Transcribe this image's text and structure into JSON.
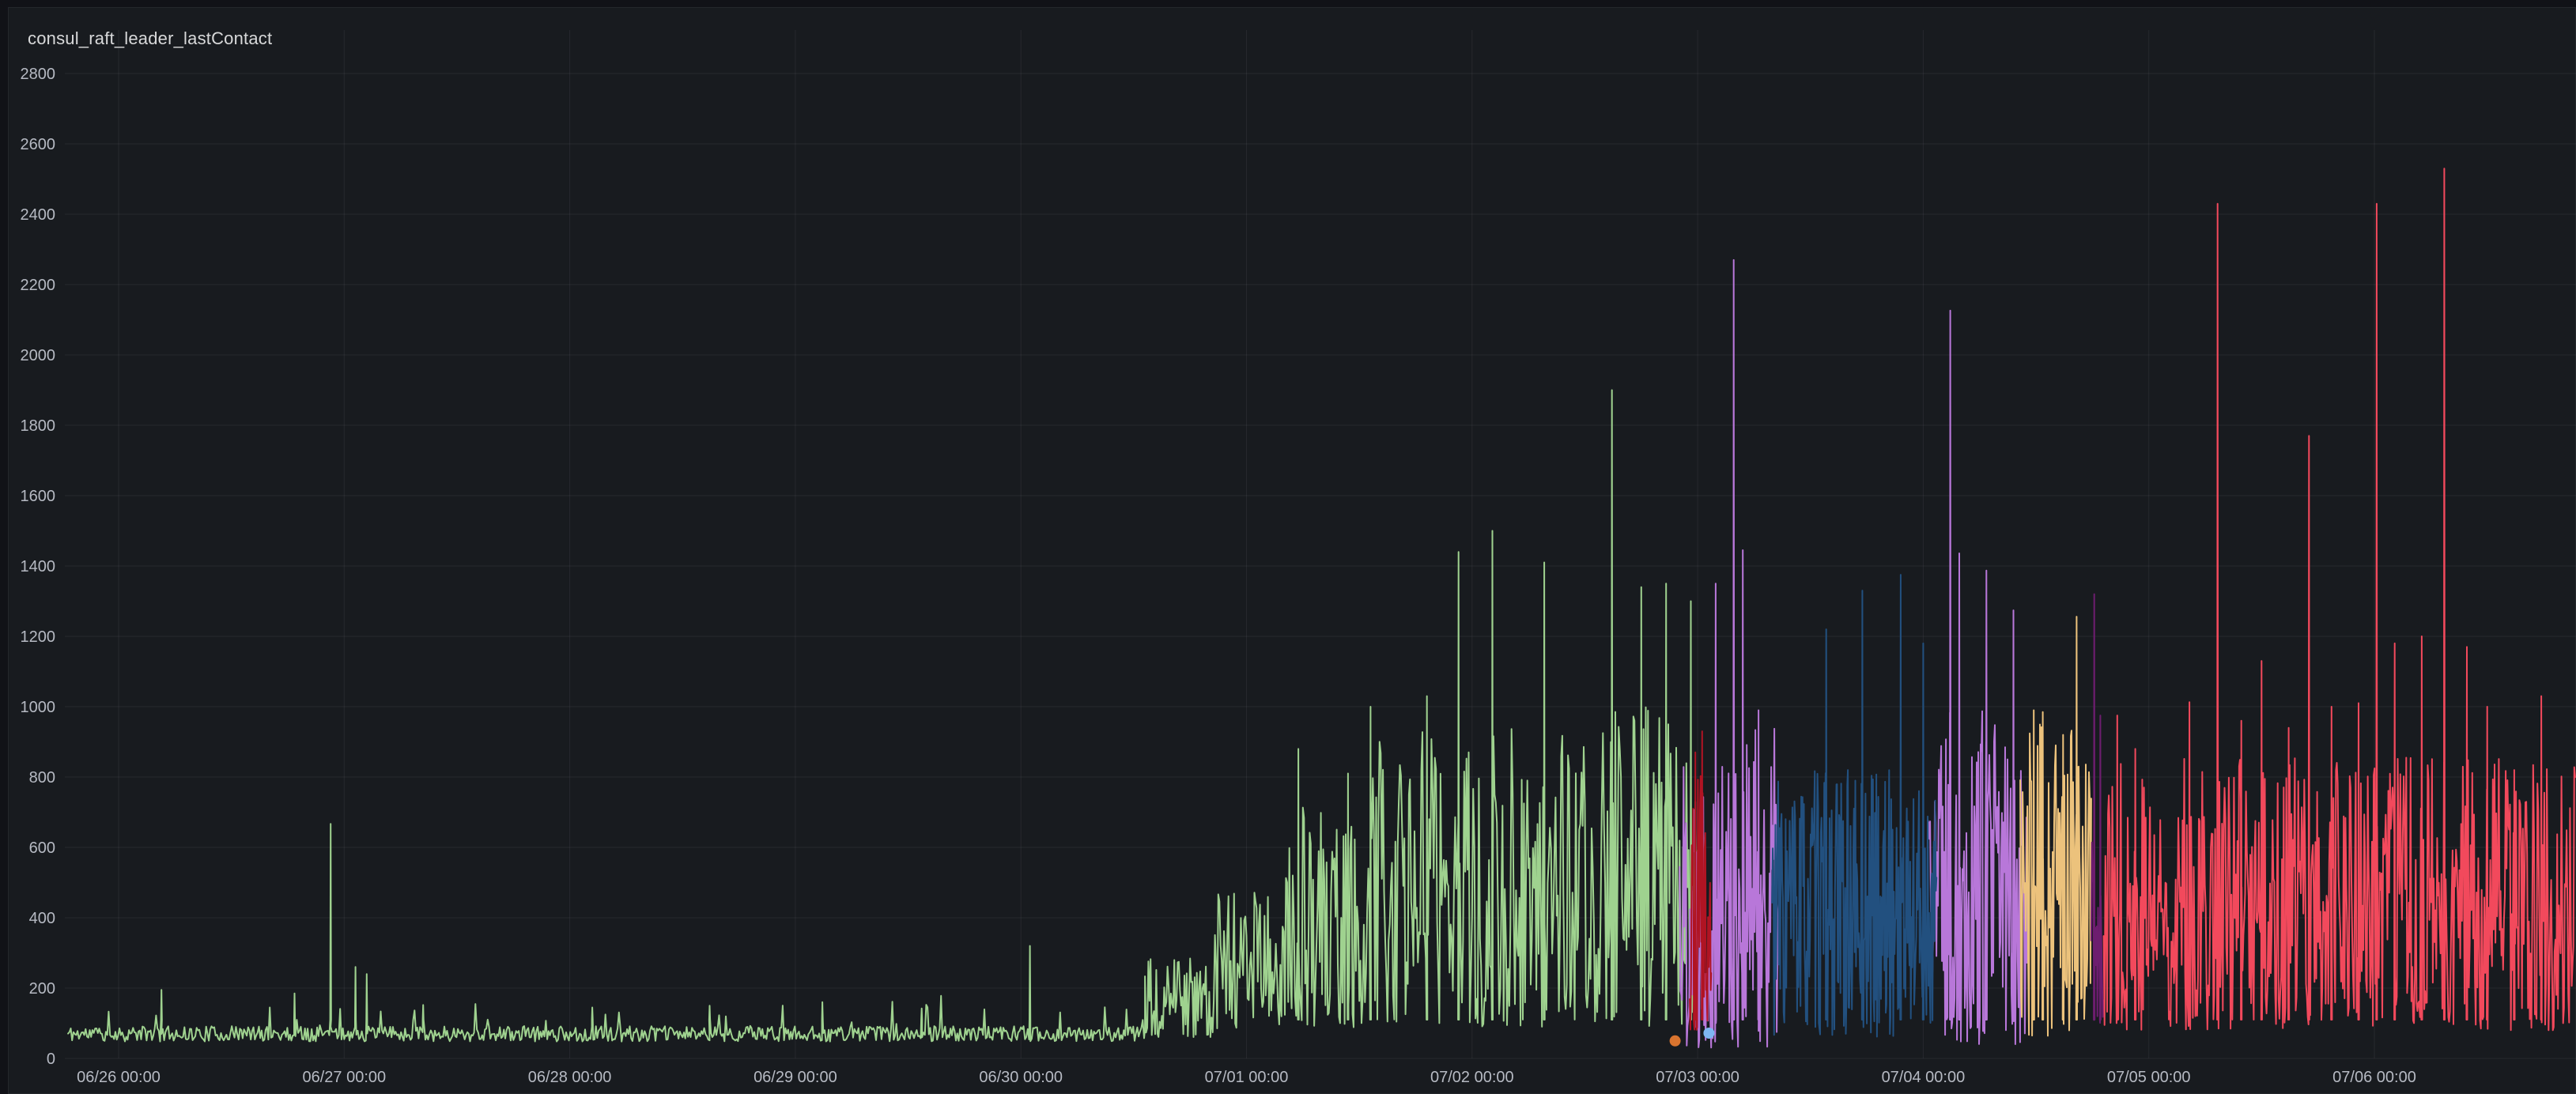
{
  "panel": {
    "title": "consul_raft_leader_lastContact"
  },
  "colors": {
    "page_background": "#111217",
    "panel_background": "#181b1f",
    "panel_border": "#24272c",
    "grid_line": "rgba(204,204,220,0.08)",
    "tick_text": "#b6bac3",
    "title_text": "#d8d9da"
  },
  "chart_data": {
    "type": "line",
    "title": "consul_raft_leader_lastContact",
    "xlabel": "",
    "ylabel": "",
    "legend": "none",
    "grid": true,
    "ylim": [
      0,
      2800
    ],
    "y_ticks": [
      0,
      200,
      400,
      600,
      800,
      1000,
      1200,
      1400,
      1600,
      1800,
      2000,
      2200,
      2400,
      2600,
      2800
    ],
    "x_tick_labels": [
      "06/26 00:00",
      "06/27 00:00",
      "06/28 00:00",
      "06/29 00:00",
      "06/30 00:00",
      "07/01 00:00",
      "07/02 00:00",
      "07/03 00:00",
      "07/04 00:00",
      "07/05 00:00",
      "07/06 00:00"
    ],
    "x_range_days_from_0626": [
      -0.224,
      10.89
    ],
    "description": "Spiky time-series of consul raft leader lastContact (ms). Flat ~70 baseline 06/26-06/30, storm of spikes 06/30-07/03 (green leader), then successive leaders: purple, dark blue, purple again, gold, dark purple, red; red continues to right edge with spikes up to ~2530. Two isolated sample dots (orange, light blue) near zero around 07/03.",
    "series": [
      {
        "name": "leader-green",
        "color": "#9fd28f",
        "seed": 11,
        "segments": [
          {
            "t0": -0.224,
            "t1": 4.55,
            "dt": 0.006,
            "lo": 48,
            "hi": 92,
            "shape": 1,
            "micro_p": 0.05,
            "micro_amp": 95
          },
          {
            "t0": 4.55,
            "t1": 4.85,
            "dt": 0.005,
            "lo": 60,
            "hi": 290,
            "shape": 1.25
          },
          {
            "t0": 4.85,
            "t1": 5.15,
            "dt": 0.005,
            "lo": 70,
            "hi": 500,
            "shape": 1.25
          },
          {
            "t0": 5.15,
            "t1": 5.55,
            "dt": 0.005,
            "lo": 80,
            "hi": 720,
            "shape": 1.25
          },
          {
            "t0": 5.55,
            "t1": 6.55,
            "dt": 0.005,
            "lo": 90,
            "hi": 940,
            "shape": 1.3
          },
          {
            "t0": 6.55,
            "t1": 7.02,
            "dt": 0.005,
            "lo": 90,
            "hi": 1000,
            "shape": 1.3
          }
        ],
        "spikes": [
          [
            0.19,
            195
          ],
          [
            0.78,
            185
          ],
          [
            0.94,
            667
          ],
          [
            1.05,
            260
          ],
          [
            1.1,
            240
          ],
          [
            1.35,
            152
          ],
          [
            2.1,
            145
          ],
          [
            2.62,
            150
          ],
          [
            3.12,
            160
          ],
          [
            3.56,
            142
          ],
          [
            4.04,
            320
          ],
          [
            5.23,
            880
          ],
          [
            5.45,
            810
          ],
          [
            5.55,
            1000
          ],
          [
            5.8,
            1030
          ],
          [
            5.94,
            1440
          ],
          [
            6.09,
            1500
          ],
          [
            6.32,
            1410
          ],
          [
            6.62,
            1900
          ],
          [
            6.75,
            1340
          ],
          [
            6.86,
            1350
          ],
          [
            6.97,
            1300
          ]
        ]
      },
      {
        "name": "leader-purple",
        "color": "#b877d9",
        "seed": 22,
        "segments": [
          {
            "t0": 6.92,
            "t1": 7.36,
            "dt": 0.0035,
            "lo": 30,
            "hi": 940,
            "shape": 1.2
          },
          {
            "t0": 8.02,
            "t1": 8.46,
            "dt": 0.0035,
            "lo": 40,
            "hi": 1000,
            "shape": 1.2
          }
        ],
        "spikes": [
          [
            7.08,
            1350
          ],
          [
            7.16,
            2270
          ],
          [
            7.2,
            1445
          ],
          [
            7.27,
            990
          ],
          [
            8.12,
            2126
          ],
          [
            8.16,
            1436
          ],
          [
            8.28,
            1387
          ],
          [
            8.4,
            1274
          ]
        ]
      },
      {
        "name": "leader-dark-blue",
        "color": "#22507f",
        "seed": 33,
        "segments": [
          {
            "t0": 7.33,
            "t1": 8.06,
            "dt": 0.003,
            "lo": 60,
            "hi": 820,
            "shape": 1.15
          }
        ],
        "spikes": [
          [
            7.57,
            1220
          ],
          [
            7.73,
            1330
          ],
          [
            7.9,
            1375
          ],
          [
            8.0,
            1180
          ]
        ]
      },
      {
        "name": "leader-gold",
        "color": "#ecc27c",
        "seed": 44,
        "segments": [
          {
            "t0": 8.43,
            "t1": 8.745,
            "dt": 0.0035,
            "lo": 60,
            "hi": 950,
            "shape": 1.1
          }
        ],
        "spikes": [
          [
            8.49,
            990
          ],
          [
            8.53,
            985
          ],
          [
            8.62,
            920
          ],
          [
            8.68,
            1256
          ]
        ]
      },
      {
        "name": "leader-dark-purple",
        "color": "#6d1d6f",
        "seed": 55,
        "segments": [
          {
            "t0": 8.745,
            "t1": 8.8,
            "dt": 0.003,
            "lo": 80,
            "hi": 700,
            "shape": 1.1
          }
        ],
        "spikes": [
          [
            8.758,
            1320
          ],
          [
            8.785,
            975
          ]
        ]
      },
      {
        "name": "leader-dark-red",
        "color": "#b01423",
        "seed": 66,
        "segments": [
          {
            "t0": 6.965,
            "t1": 7.06,
            "dt": 0.003,
            "lo": 80,
            "hi": 820,
            "shape": 1.1
          }
        ],
        "spikes": [
          [
            6.99,
            870
          ],
          [
            7.02,
            930
          ]
        ]
      },
      {
        "name": "leader-red",
        "color": "#f2495c",
        "seed": 77,
        "segments": [
          {
            "t0": 8.8,
            "t1": 10.89,
            "dt": 0.0038,
            "lo": 80,
            "hi": 860,
            "shape": 1.25
          }
        ],
        "spikes": [
          [
            8.86,
            975
          ],
          [
            8.94,
            880
          ],
          [
            9.18,
            1013
          ],
          [
            9.305,
            2430
          ],
          [
            9.41,
            960
          ],
          [
            9.5,
            1130
          ],
          [
            9.62,
            940
          ],
          [
            9.71,
            1770
          ],
          [
            9.81,
            1000
          ],
          [
            9.93,
            1010
          ],
          [
            10.01,
            2430
          ],
          [
            10.09,
            1180
          ],
          [
            10.21,
            1200
          ],
          [
            10.31,
            2530
          ],
          [
            10.41,
            1170
          ],
          [
            10.5,
            1000
          ],
          [
            10.62,
            820
          ],
          [
            10.74,
            1030
          ]
        ]
      }
    ],
    "isolated_points": [
      {
        "name": "orange-sample-point",
        "color": "#d9742f",
        "t": 6.9,
        "value": 50
      },
      {
        "name": "light-blue-sample-point",
        "color": "#7eb6f2",
        "t": 7.05,
        "value": 72
      }
    ]
  }
}
